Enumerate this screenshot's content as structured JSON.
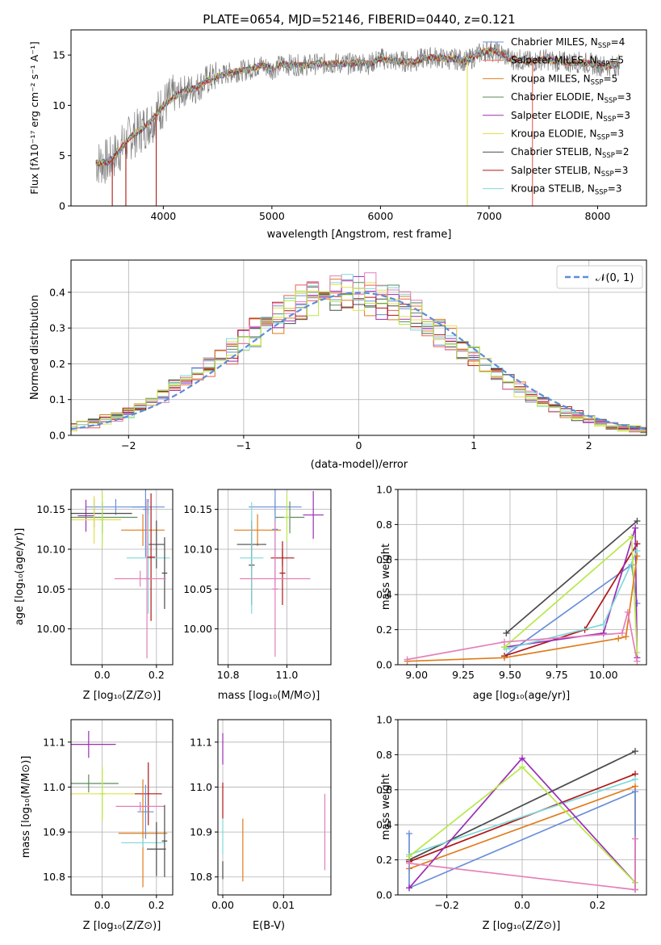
{
  "figure": {
    "spectrum_title": "PLATE=0654, MJD=52146, FIBERID=0440, z=0.121"
  },
  "colors": {
    "chabrier_miles": "#6a8fd8",
    "salpeter_miles": "#e8604c",
    "kroupa_miles": "#e07b1a",
    "chabrier_elodie": "#5e8a5e",
    "salpeter_elodie": "#9b2fb5",
    "kroupa_elodie": "#e3e04a",
    "chabrier_stelib": "#4a4a4a",
    "salpeter_stelib": "#b01616",
    "kroupa_stelib": "#7fd9d9",
    "data": "#808080",
    "normal_curve": "#5b8ed6",
    "pink": "#e47fb8",
    "lime": "#b8e84a"
  },
  "chart_data": [
    {
      "id": "spectrum",
      "type": "line",
      "title": "PLATE=0654, MJD=52146, FIBERID=0440, z=0.121",
      "xlabel": "wavelength [Angstrom, rest frame]",
      "ylabel": "Flux [fλ10⁻¹⁷ erg cm⁻² s⁻¹ A⁻¹]",
      "xlim": [
        3150,
        8450
      ],
      "ylim": [
        0,
        17.5
      ],
      "xticks": [
        "4000",
        "5000",
        "6000",
        "7000",
        "8000"
      ],
      "yticks": [
        "0",
        "5",
        "10",
        "15"
      ],
      "legend": "top-right",
      "series": [
        {
          "name": "Chabrier MILES, N_SSP=4",
          "label_main": "Chabrier MILES, N",
          "label_sub": "SSP",
          "label_tail": "=4",
          "color": "#6a8fd8"
        },
        {
          "name": "Salpeter MILES, N_SSP=5",
          "label_main": "Salpeter MILES, N",
          "label_sub": "SSP",
          "label_tail": "=5",
          "color": "#e8604c"
        },
        {
          "name": "Kroupa MILES, N_SSP=5",
          "label_main": "Kroupa MILES, N",
          "label_sub": "SSP",
          "label_tail": "=5",
          "color": "#e07b1a"
        },
        {
          "name": "Chabrier ELODIE, N_SSP=3",
          "label_main": "Chabrier ELODIE, N",
          "label_sub": "SSP",
          "label_tail": "=3",
          "color": "#5e8a5e"
        },
        {
          "name": "Salpeter ELODIE, N_SSP=3",
          "label_main": "Salpeter ELODIE, N",
          "label_sub": "SSP",
          "label_tail": "=3",
          "color": "#9b2fb5"
        },
        {
          "name": "Kroupa ELODIE, N_SSP=3",
          "label_main": "Kroupa ELODIE, N",
          "label_sub": "SSP",
          "label_tail": "=3",
          "color": "#e3e04a"
        },
        {
          "name": "Chabrier STELIB, N_SSP=2",
          "label_main": "Chabrier STELIB, N",
          "label_sub": "SSP",
          "label_tail": "=2",
          "color": "#4a4a4a"
        },
        {
          "name": "Salpeter STELIB, N_SSP=3",
          "label_main": "Salpeter STELIB, N",
          "label_sub": "SSP",
          "label_tail": "=3",
          "color": "#b01616"
        },
        {
          "name": "Kroupa STELIB, N_SSP=3",
          "label_main": "Kroupa STELIB, N",
          "label_sub": "SSP",
          "label_tail": "=3",
          "color": "#7fd9d9"
        }
      ],
      "continuum": [
        [
          3380,
          4.3
        ],
        [
          3500,
          4.4
        ],
        [
          3600,
          5.6
        ],
        [
          3700,
          6.9
        ],
        [
          3800,
          7.6
        ],
        [
          3900,
          8.6
        ],
        [
          4000,
          10.0
        ],
        [
          4100,
          10.8
        ],
        [
          4200,
          11.5
        ],
        [
          4300,
          11.7
        ],
        [
          4400,
          12.5
        ],
        [
          4500,
          12.9
        ],
        [
          4600,
          13.2
        ],
        [
          4700,
          13.4
        ],
        [
          4800,
          13.6
        ],
        [
          4900,
          14.0
        ],
        [
          5000,
          13.6
        ],
        [
          5100,
          14.1
        ],
        [
          5200,
          14.0
        ],
        [
          5300,
          14.0
        ],
        [
          5400,
          14.1
        ],
        [
          5500,
          14.1
        ],
        [
          5600,
          14.2
        ],
        [
          5700,
          14.1
        ],
        [
          5800,
          14.3
        ],
        [
          5900,
          14.1
        ],
        [
          6000,
          14.7
        ],
        [
          6100,
          14.4
        ],
        [
          6200,
          14.4
        ],
        [
          6300,
          14.3
        ],
        [
          6400,
          14.7
        ],
        [
          6500,
          14.8
        ],
        [
          6600,
          14.6
        ],
        [
          6700,
          14.6
        ],
        [
          6800,
          14.4
        ],
        [
          6900,
          15.1
        ],
        [
          7000,
          15.5
        ],
        [
          7100,
          15.2
        ],
        [
          7200,
          14.6
        ],
        [
          7300,
          14.5
        ],
        [
          7400,
          14.3
        ],
        [
          7500,
          14.6
        ],
        [
          7600,
          14.4
        ],
        [
          7700,
          14.3
        ],
        [
          7800,
          14.3
        ],
        [
          7900,
          14.2
        ],
        [
          8000,
          14.0
        ],
        [
          8100,
          13.9
        ],
        [
          8200,
          14.0
        ]
      ],
      "absorption_drops": [
        {
          "x": 3530,
          "to": 0
        },
        {
          "x": 3655,
          "to": 0
        },
        {
          "x": 3935,
          "to": 0
        },
        {
          "x": 6800,
          "to": 0
        },
        {
          "x": 7400,
          "to": 0
        }
      ]
    },
    {
      "id": "residuals",
      "type": "bar",
      "xlabel": "(data-model)/error",
      "ylabel": "Normed distribution",
      "xlim": [
        -2.5,
        2.5
      ],
      "ylim": [
        0,
        0.49
      ],
      "xticks": [
        "−2",
        "−1",
        "0",
        "1",
        "2"
      ],
      "yticks": [
        "0.0",
        "0.1",
        "0.2",
        "0.3",
        "0.4"
      ],
      "grid": true,
      "legend": "top-right",
      "legend_label": "𝒩(0, 1)",
      "bin_width": 0.1
    },
    {
      "id": "age_vs_Z",
      "type": "scatter",
      "xlabel": "Z [log₁₀(Z/Z⊙)]",
      "ylabel": "age  [log₁₀(age/yr)]",
      "xlim": [
        -0.115,
        0.26
      ],
      "ylim": [
        9.955,
        10.175
      ],
      "xticks": [
        "0.0",
        "0.2"
      ],
      "yticks": [
        "10.00",
        "10.05",
        "10.10",
        "10.15"
      ],
      "grid": true,
      "points": [
        {
          "x": 0.05,
          "y": 10.153,
          "xerr": 0.11,
          "yerr": 0.01,
          "color": "#6a8fd8"
        },
        {
          "x": -0.06,
          "y": 10.142,
          "xerr": 0.03,
          "yerr": 0.02,
          "color": "#9b2fb5"
        },
        {
          "x": -0.03,
          "y": 10.145,
          "xerr": 0.14,
          "yerr": 0.018,
          "color": "#4a4a4a"
        },
        {
          "x": 0.0,
          "y": 10.14,
          "xerr": 0.13,
          "yerr": 0.02,
          "color": "#5e8a5e"
        },
        {
          "x": -0.03,
          "y": 10.137,
          "xerr": 0.1,
          "yerr": 0.03,
          "color": "#e3e04a"
        },
        {
          "x": 0.0,
          "y": 10.137,
          "xerr": 0.01,
          "yerr": 0.035,
          "color": "#b8e84a"
        },
        {
          "x": 0.17,
          "y": 10.153,
          "xerr": 0.06,
          "yerr": 0.01,
          "color": "#6a8fd8"
        },
        {
          "x": 0.15,
          "y": 10.124,
          "xerr": 0.08,
          "yerr": 0.02,
          "color": "#e07b1a"
        },
        {
          "x": 0.2,
          "y": 10.106,
          "xerr": 0.03,
          "yerr": 0.03,
          "color": "#4a4a4a"
        },
        {
          "x": 0.17,
          "y": 10.089,
          "xerr": 0.08,
          "yerr": 0.07,
          "color": "#7fd9d9"
        },
        {
          "x": 0.18,
          "y": 10.09,
          "xerr": 0.015,
          "yerr": 0.08,
          "color": "#b01616"
        },
        {
          "x": 0.16,
          "y": 10.15,
          "xerr": 0.01,
          "yerr": 0.06,
          "color": "#6a8fd8"
        },
        {
          "x": 0.23,
          "y": 10.07,
          "xerr": 0.01,
          "yerr": 0.045,
          "color": "#4a4a4a"
        },
        {
          "x": 0.14,
          "y": 10.063,
          "xerr": 0.095,
          "yerr": 0.01,
          "color": "#e47fb8"
        },
        {
          "x": 0.165,
          "y": 10.063,
          "xerr": 0.01,
          "yerr": 0.1,
          "color": "#e47fb8"
        }
      ]
    },
    {
      "id": "age_vs_mass",
      "type": "scatter",
      "xlabel": "mass [log₁₀(M/M⊙)]",
      "ylabel": "",
      "xlim": [
        10.765,
        11.15
      ],
      "ylim": [
        9.955,
        10.175
      ],
      "xticks": [
        "10.8",
        "11.0"
      ],
      "yticks": [
        "10.15",
        "10.10",
        "10.05",
        "10.00"
      ],
      "grid": true,
      "points": [
        {
          "x": 10.96,
          "y": 10.153,
          "xerr": 0.09,
          "yerr": 0.01,
          "color": "#6a8fd8"
        },
        {
          "x": 11.09,
          "y": 10.143,
          "xerr": 0.035,
          "yerr": 0.03,
          "color": "#9b2fb5"
        },
        {
          "x": 11.01,
          "y": 10.14,
          "xerr": 0.05,
          "yerr": 0.02,
          "color": "#5e8a5e"
        },
        {
          "x": 11.0,
          "y": 10.14,
          "xerr": 0.01,
          "yerr": 0.03,
          "color": "#b8e84a"
        },
        {
          "x": 10.9,
          "y": 10.124,
          "xerr": 0.08,
          "yerr": 0.02,
          "color": "#e07b1a"
        },
        {
          "x": 10.96,
          "y": 10.125,
          "xerr": 0.01,
          "yerr": 0.07,
          "color": "#6a8fd8"
        },
        {
          "x": 10.88,
          "y": 10.106,
          "xerr": 0.05,
          "yerr": 0.03,
          "color": "#4a4a4a"
        },
        {
          "x": 10.88,
          "y": 10.08,
          "xerr": 0.01,
          "yerr": 0.05,
          "color": "#4a4a4a"
        },
        {
          "x": 10.88,
          "y": 10.089,
          "xerr": 0.04,
          "yerr": 0.07,
          "color": "#7fd9d9"
        },
        {
          "x": 10.985,
          "y": 10.089,
          "xerr": 0.04,
          "yerr": 0.01,
          "color": "#b01616"
        },
        {
          "x": 10.985,
          "y": 10.07,
          "xerr": 0.01,
          "yerr": 0.04,
          "color": "#b01616"
        },
        {
          "x": 10.96,
          "y": 10.063,
          "xerr": 0.12,
          "yerr": 0.01,
          "color": "#e47fb8"
        },
        {
          "x": 10.96,
          "y": 10.05,
          "xerr": 0.01,
          "yerr": 0.085,
          "color": "#e47fb8"
        }
      ]
    },
    {
      "id": "mass_weight_vs_age",
      "type": "line",
      "xlabel": "age  [log₁₀(age/yr)]",
      "ylabel": "mass weight",
      "xlim": [
        8.9,
        10.23
      ],
      "ylim": [
        0,
        1.0
      ],
      "xticks": [
        "9.00",
        "9.25",
        "9.50",
        "9.75",
        "10.00"
      ],
      "yticks": [
        "0.0",
        "0.2",
        "0.4",
        "0.6",
        "0.8",
        "1.0"
      ],
      "grid": true,
      "series": [
        {
          "color": "#4a4a4a",
          "x": [
            9.48,
            10.18
          ],
          "y": [
            0.18,
            0.82
          ]
        },
        {
          "color": "#6a8fd8",
          "x": [
            9.47,
            10.15,
            10.18
          ],
          "y": [
            0.05,
            0.57,
            0.35
          ]
        },
        {
          "color": "#b01616",
          "x": [
            9.47,
            9.9,
            10.18
          ],
          "y": [
            0.05,
            0.2,
            0.69
          ]
        },
        {
          "color": "#9b2fb5",
          "x": [
            9.47,
            10.0,
            10.17,
            10.18
          ],
          "y": [
            0.1,
            0.18,
            0.78,
            0.04
          ]
        },
        {
          "color": "#7fd9d9",
          "x": [
            9.48,
            10.0,
            10.18
          ],
          "y": [
            0.09,
            0.23,
            0.65
          ]
        },
        {
          "color": "#b8e84a",
          "x": [
            9.47,
            10.15,
            10.18
          ],
          "y": [
            0.1,
            0.73,
            0.07
          ]
        },
        {
          "color": "#e07b1a",
          "x": [
            8.95,
            9.47,
            10.08,
            10.12,
            10.18
          ],
          "y": [
            0.02,
            0.04,
            0.15,
            0.16,
            0.62
          ]
        },
        {
          "color": "#e47fb8",
          "x": [
            8.95,
            9.47,
            10.1,
            10.13,
            10.18
          ],
          "y": [
            0.03,
            0.13,
            0.18,
            0.3,
            0.02
          ]
        }
      ]
    },
    {
      "id": "mass_vs_Z",
      "type": "scatter",
      "xlabel": "Z [log₁₀(Z/Z⊙)]",
      "ylabel": "mass [log₁₀(M/M⊙)]",
      "xlim": [
        -0.115,
        0.26
      ],
      "ylim": [
        10.76,
        11.15
      ],
      "xticks": [
        "0.0",
        "0.2"
      ],
      "yticks": [
        "10.8",
        "10.9",
        "11.0",
        "11.1"
      ],
      "grid": true,
      "points": [
        {
          "x": -0.05,
          "y": 11.095,
          "xerr": 0.1,
          "yerr": 0.03,
          "color": "#9b2fb5"
        },
        {
          "x": -0.05,
          "y": 11.008,
          "xerr": 0.11,
          "yerr": 0.02,
          "color": "#5e8a5e"
        },
        {
          "x": 0.0,
          "y": 10.985,
          "xerr": 0.12,
          "yerr": 0.06,
          "color": "#e3e04a"
        },
        {
          "x": 0.0,
          "y": 10.985,
          "xerr": 0.01,
          "yerr": 0.06,
          "color": "#b8e84a"
        },
        {
          "x": 0.17,
          "y": 10.985,
          "xerr": 0.05,
          "yerr": 0.07,
          "color": "#b01616"
        },
        {
          "x": 0.14,
          "y": 10.957,
          "xerr": 0.09,
          "yerr": 0.01,
          "color": "#e47fb8"
        },
        {
          "x": 0.16,
          "y": 10.945,
          "xerr": 0.03,
          "yerr": 0.06,
          "color": "#6a8fd8"
        },
        {
          "x": 0.15,
          "y": 10.897,
          "xerr": 0.09,
          "yerr": 0.12,
          "color": "#e07b1a"
        },
        {
          "x": 0.15,
          "y": 10.876,
          "xerr": 0.08,
          "yerr": 0.01,
          "color": "#7fd9d9"
        },
        {
          "x": 0.2,
          "y": 10.862,
          "xerr": 0.035,
          "yerr": 0.06,
          "color": "#4a4a4a"
        },
        {
          "x": 0.23,
          "y": 10.88,
          "xerr": 0.01,
          "yerr": 0.08,
          "color": "#4a4a4a"
        }
      ]
    },
    {
      "id": "mass_vs_ebv",
      "type": "scatter",
      "xlabel": "E(B-V)",
      "ylabel": "",
      "xlim": [
        -0.0008,
        0.0178
      ],
      "ylim": [
        10.76,
        11.15
      ],
      "xticks": [
        "0.00",
        "0.01"
      ],
      "yticks": [
        "10.8",
        "10.9",
        "11.0",
        "11.1"
      ],
      "grid": true,
      "points": [
        {
          "x": 0.0,
          "y": 11.085,
          "yerr": 0.035,
          "color": "#9b2fb5"
        },
        {
          "x": 0.0,
          "y": 10.97,
          "yerr": 0.04,
          "color": "#b01616"
        },
        {
          "x": 0.0,
          "y": 10.89,
          "yerr": 0.04,
          "color": "#7fd9d9"
        },
        {
          "x": 0.0,
          "y": 10.815,
          "yerr": 0.02,
          "color": "#4a4a4a"
        },
        {
          "x": 0.0033,
          "y": 10.86,
          "yerr": 0.07,
          "color": "#e07b1a"
        },
        {
          "x": 0.0168,
          "y": 10.9,
          "yerr": 0.085,
          "color": "#e47fb8"
        }
      ]
    },
    {
      "id": "mass_weight_vs_Z",
      "type": "line",
      "xlabel": "Z [log₁₀(Z/Z⊙)]",
      "ylabel": "mass weight",
      "xlim": [
        -0.33,
        0.33
      ],
      "ylim": [
        0,
        1.0
      ],
      "xticks": [
        "−0.2",
        "0.0",
        "0.2"
      ],
      "yticks": [
        "0.0",
        "0.2",
        "0.4",
        "0.6",
        "0.8",
        "1.0"
      ],
      "grid": true,
      "series": [
        {
          "color": "#4a4a4a",
          "x": [
            -0.3,
            0.3
          ],
          "y": [
            0.2,
            0.82
          ]
        },
        {
          "color": "#b01616",
          "x": [
            -0.3,
            0.3
          ],
          "y": [
            0.19,
            0.69
          ]
        },
        {
          "color": "#7fd9d9",
          "x": [
            -0.3,
            0.3
          ],
          "y": [
            0.23,
            0.66
          ]
        },
        {
          "color": "#e07b1a",
          "x": [
            -0.3,
            0.3,
            0.3
          ],
          "y": [
            0.15,
            0.62,
            0.03
          ]
        },
        {
          "color": "#6a8fd8",
          "x": [
            -0.3,
            -0.3,
            0.3,
            0.3
          ],
          "y": [
            0.35,
            0.04,
            0.59,
            0.03
          ]
        },
        {
          "color": "#9b2fb5",
          "x": [
            -0.3,
            0.0,
            0.3
          ],
          "y": [
            0.04,
            0.78,
            0.07
          ]
        },
        {
          "color": "#b8e84a",
          "x": [
            -0.3,
            0.0,
            0.3
          ],
          "y": [
            0.22,
            0.73,
            0.07
          ]
        },
        {
          "color": "#e47fb8",
          "x": [
            -0.3,
            0.3,
            0.3
          ],
          "y": [
            0.18,
            0.03,
            0.32
          ]
        }
      ]
    }
  ]
}
